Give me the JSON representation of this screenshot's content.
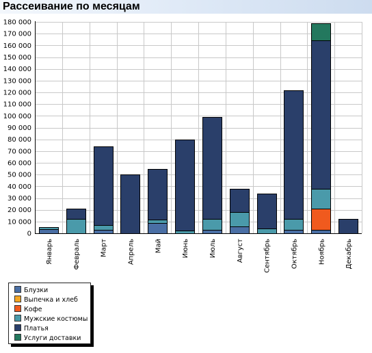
{
  "header": {
    "title": "Рассеивание по месяцам"
  },
  "chart_data": {
    "type": "bar",
    "stacked": true,
    "title": "Рассеивание по месяцам",
    "xlabel": "",
    "ylabel": "",
    "ylim": [
      0,
      180000
    ],
    "yticks": [
      0,
      10000,
      20000,
      30000,
      40000,
      50000,
      60000,
      70000,
      80000,
      90000,
      100000,
      110000,
      120000,
      130000,
      140000,
      150000,
      160000,
      170000,
      180000
    ],
    "ytick_labels": [
      "0",
      "10 000",
      "20 000",
      "30 000",
      "40 000",
      "50 000",
      "60 000",
      "70 000",
      "80 000",
      "90 000",
      "100 000",
      "110 000",
      "120 000",
      "130 000",
      "140 000",
      "150 000",
      "160 000",
      "170 000",
      "180 000"
    ],
    "grid": true,
    "legend_position": "bottom-left",
    "categories": [
      "Январь",
      "Февраль",
      "Март",
      "Апрель",
      "Май",
      "Июнь",
      "Июль",
      "Август",
      "Сентябрь",
      "Октябрь",
      "Ноябрь",
      "Декабрь"
    ],
    "series": [
      {
        "name": "Блузки",
        "color": "#4a6fa5",
        "values": [
          3500,
          0,
          3000,
          0,
          9000,
          0,
          3000,
          6000,
          0,
          3000,
          3000,
          0
        ]
      },
      {
        "name": "Выпечка и хлеб",
        "color": "#f5a623",
        "values": [
          0,
          0,
          0,
          0,
          0,
          0,
          0,
          0,
          0,
          0,
          0,
          0
        ]
      },
      {
        "name": "Кофе",
        "color": "#f05a1e",
        "values": [
          0,
          0,
          0,
          0,
          0,
          0,
          0,
          0,
          0,
          0,
          18000,
          0
        ]
      },
      {
        "name": "Мужские костюмы",
        "color": "#4a9aaa",
        "values": [
          2000,
          12000,
          4000,
          0,
          2500,
          2500,
          9000,
          12000,
          4000,
          9000,
          17000,
          0
        ]
      },
      {
        "name": "Платья",
        "color": "#2a3f6a",
        "values": [
          0,
          9000,
          67000,
          50000,
          43000,
          77500,
          87000,
          20000,
          30000,
          110000,
          126000,
          12500
        ]
      },
      {
        "name": "Услуги доставки",
        "color": "#23785e",
        "values": [
          0,
          0,
          0,
          0,
          0,
          0,
          0,
          0,
          0,
          0,
          15000,
          0
        ]
      }
    ]
  }
}
